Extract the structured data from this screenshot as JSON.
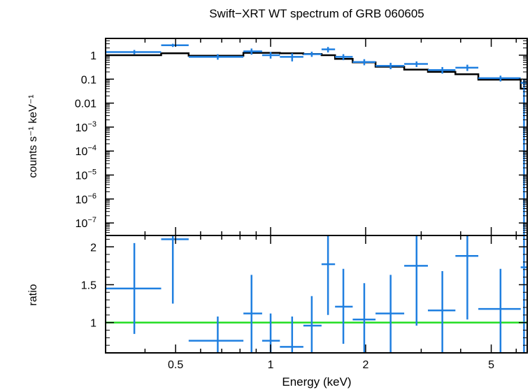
{
  "chart_data": [
    {
      "type": "scatter",
      "panel": "spectrum",
      "title": "Swift−XRT WT spectrum of GRB 060605",
      "ylabel": "counts s⁻¹ keV⁻¹",
      "xscale": "log",
      "yscale": "log",
      "xlim": [
        0.3,
        6.5
      ],
      "ylim": [
        3e-08,
        5
      ],
      "ytick_labels": [
        {
          "v": 1,
          "t": "1"
        },
        {
          "v": 0.1,
          "t": "0.1"
        },
        {
          "v": 0.01,
          "t": "0.01"
        },
        {
          "v": 0.001,
          "base": "10",
          "exp": "−3"
        },
        {
          "v": 0.0001,
          "base": "10",
          "exp": "−4"
        },
        {
          "v": 1e-05,
          "base": "10",
          "exp": "−5"
        },
        {
          "v": 1e-06,
          "base": "10",
          "exp": "−6"
        },
        {
          "v": 1e-07,
          "base": "10",
          "exp": "−7"
        }
      ],
      "data_color": "#1f7fe0",
      "model_color": "#000000",
      "data": [
        {
          "x": 0.37,
          "xlo": 0.3,
          "xhi": 0.45,
          "y": 1.35,
          "ylo": 1.1,
          "yhi": 1.65
        },
        {
          "x": 0.49,
          "xlo": 0.45,
          "xhi": 0.55,
          "y": 2.6,
          "ylo": 2.2,
          "yhi": 3.0
        },
        {
          "x": 0.68,
          "xlo": 0.55,
          "xhi": 0.82,
          "y": 0.85,
          "ylo": 0.65,
          "yhi": 1.1
        },
        {
          "x": 0.87,
          "xlo": 0.82,
          "xhi": 0.94,
          "y": 1.45,
          "ylo": 1.05,
          "yhi": 1.9
        },
        {
          "x": 1.0,
          "xlo": 0.94,
          "xhi": 1.07,
          "y": 1.0,
          "ylo": 0.72,
          "yhi": 1.35
        },
        {
          "x": 1.17,
          "xlo": 1.07,
          "xhi": 1.27,
          "y": 0.85,
          "ylo": 0.55,
          "yhi": 1.2
        },
        {
          "x": 1.35,
          "xlo": 1.27,
          "xhi": 1.45,
          "y": 1.1,
          "ylo": 0.85,
          "yhi": 1.4
        },
        {
          "x": 1.52,
          "xlo": 1.45,
          "xhi": 1.6,
          "y": 1.75,
          "ylo": 1.3,
          "yhi": 2.2
        },
        {
          "x": 1.7,
          "xlo": 1.6,
          "xhi": 1.82,
          "y": 0.85,
          "ylo": 0.62,
          "yhi": 1.1
        },
        {
          "x": 1.98,
          "xlo": 1.82,
          "xhi": 2.15,
          "y": 0.52,
          "ylo": 0.38,
          "yhi": 0.68
        },
        {
          "x": 2.4,
          "xlo": 2.15,
          "xhi": 2.65,
          "y": 0.36,
          "ylo": 0.26,
          "yhi": 0.48
        },
        {
          "x": 2.9,
          "xlo": 2.65,
          "xhi": 3.15,
          "y": 0.43,
          "ylo": 0.32,
          "yhi": 0.55
        },
        {
          "x": 3.5,
          "xlo": 3.15,
          "xhi": 3.85,
          "y": 0.24,
          "ylo": 0.17,
          "yhi": 0.32
        },
        {
          "x": 4.2,
          "xlo": 3.85,
          "xhi": 4.55,
          "y": 0.3,
          "ylo": 0.22,
          "yhi": 0.4
        },
        {
          "x": 5.35,
          "xlo": 4.55,
          "xhi": 6.2,
          "y": 0.11,
          "ylo": 0.08,
          "yhi": 0.14
        },
        {
          "x": 6.35,
          "xlo": 6.2,
          "xhi": 6.5,
          "y": 0.07,
          "ylo": 3e-08,
          "yhi": 0.1
        }
      ],
      "model": [
        {
          "xlo": 0.3,
          "xhi": 0.45,
          "y": 1.0
        },
        {
          "xlo": 0.45,
          "xhi": 0.55,
          "y": 1.2
        },
        {
          "xlo": 0.55,
          "xhi": 0.82,
          "y": 0.95
        },
        {
          "xlo": 0.82,
          "xhi": 0.94,
          "y": 1.25
        },
        {
          "xlo": 0.94,
          "xhi": 1.07,
          "y": 1.25
        },
        {
          "xlo": 1.07,
          "xhi": 1.27,
          "y": 1.2
        },
        {
          "xlo": 1.27,
          "xhi": 1.45,
          "y": 1.12
        },
        {
          "xlo": 1.45,
          "xhi": 1.6,
          "y": 1.0
        },
        {
          "xlo": 1.6,
          "xhi": 1.82,
          "y": 0.7
        },
        {
          "xlo": 1.82,
          "xhi": 2.15,
          "y": 0.5
        },
        {
          "xlo": 2.15,
          "xhi": 2.65,
          "y": 0.33
        },
        {
          "xlo": 2.65,
          "xhi": 3.15,
          "y": 0.25
        },
        {
          "xlo": 3.15,
          "xhi": 3.85,
          "y": 0.2
        },
        {
          "xlo": 3.85,
          "xhi": 4.55,
          "y": 0.16
        },
        {
          "xlo": 4.55,
          "xhi": 6.2,
          "y": 0.095
        },
        {
          "xlo": 6.2,
          "xhi": 6.5,
          "y": 0.04
        }
      ]
    },
    {
      "type": "scatter",
      "panel": "ratio",
      "xlabel": "Energy (keV)",
      "ylabel": "ratio",
      "xscale": "log",
      "xlim": [
        0.3,
        6.5
      ],
      "ylim": [
        0.6,
        2.15
      ],
      "xtick_labels": [
        {
          "v": 0.5,
          "t": "0.5"
        },
        {
          "v": 1,
          "t": "1"
        },
        {
          "v": 2,
          "t": "2"
        },
        {
          "v": 5,
          "t": "5"
        }
      ],
      "ytick_labels": [
        {
          "v": 1,
          "t": "1"
        },
        {
          "v": 1.5,
          "t": "1.5"
        },
        {
          "v": 2,
          "t": "2"
        }
      ],
      "reference_line": 1.0,
      "reference_color": "#22dd22",
      "data_color": "#1f7fe0",
      "data": [
        {
          "x": 0.37,
          "xlo": 0.3,
          "xhi": 0.45,
          "y": 1.45,
          "ylo": 0.85,
          "yhi": 2.05
        },
        {
          "x": 0.49,
          "xlo": 0.45,
          "xhi": 0.55,
          "y": 2.1,
          "ylo": 1.25,
          "yhi": 2.15
        },
        {
          "x": 0.68,
          "xlo": 0.55,
          "xhi": 0.82,
          "y": 0.76,
          "ylo": 0.6,
          "yhi": 1.08
        },
        {
          "x": 0.87,
          "xlo": 0.82,
          "xhi": 0.94,
          "y": 1.12,
          "ylo": 0.6,
          "yhi": 1.63
        },
        {
          "x": 1.0,
          "xlo": 0.94,
          "xhi": 1.07,
          "y": 0.76,
          "ylo": 0.6,
          "yhi": 1.12
        },
        {
          "x": 1.17,
          "xlo": 1.07,
          "xhi": 1.27,
          "y": 0.68,
          "ylo": 0.6,
          "yhi": 1.08
        },
        {
          "x": 1.35,
          "xlo": 1.27,
          "xhi": 1.45,
          "y": 0.96,
          "ylo": 0.6,
          "yhi": 1.35
        },
        {
          "x": 1.52,
          "xlo": 1.45,
          "xhi": 1.6,
          "y": 1.77,
          "ylo": 1.1,
          "yhi": 2.15
        },
        {
          "x": 1.7,
          "xlo": 1.6,
          "xhi": 1.82,
          "y": 1.21,
          "ylo": 0.72,
          "yhi": 1.71
        },
        {
          "x": 1.98,
          "xlo": 1.82,
          "xhi": 2.15,
          "y": 1.04,
          "ylo": 0.6,
          "yhi": 1.52
        },
        {
          "x": 2.4,
          "xlo": 2.15,
          "xhi": 2.65,
          "y": 1.12,
          "ylo": 0.6,
          "yhi": 1.63
        },
        {
          "x": 2.9,
          "xlo": 2.65,
          "xhi": 3.15,
          "y": 1.75,
          "ylo": 0.96,
          "yhi": 2.15
        },
        {
          "x": 3.5,
          "xlo": 3.15,
          "xhi": 3.85,
          "y": 1.16,
          "ylo": 0.6,
          "yhi": 1.68
        },
        {
          "x": 4.2,
          "xlo": 3.85,
          "xhi": 4.55,
          "y": 1.88,
          "ylo": 1.04,
          "yhi": 2.15
        },
        {
          "x": 5.35,
          "xlo": 4.55,
          "xhi": 6.2,
          "y": 1.18,
          "ylo": 0.6,
          "yhi": 1.71
        },
        {
          "x": 6.35,
          "xlo": 6.2,
          "xhi": 6.5,
          "y": 1.73,
          "ylo": 0.6,
          "yhi": 2.15
        }
      ]
    }
  ]
}
